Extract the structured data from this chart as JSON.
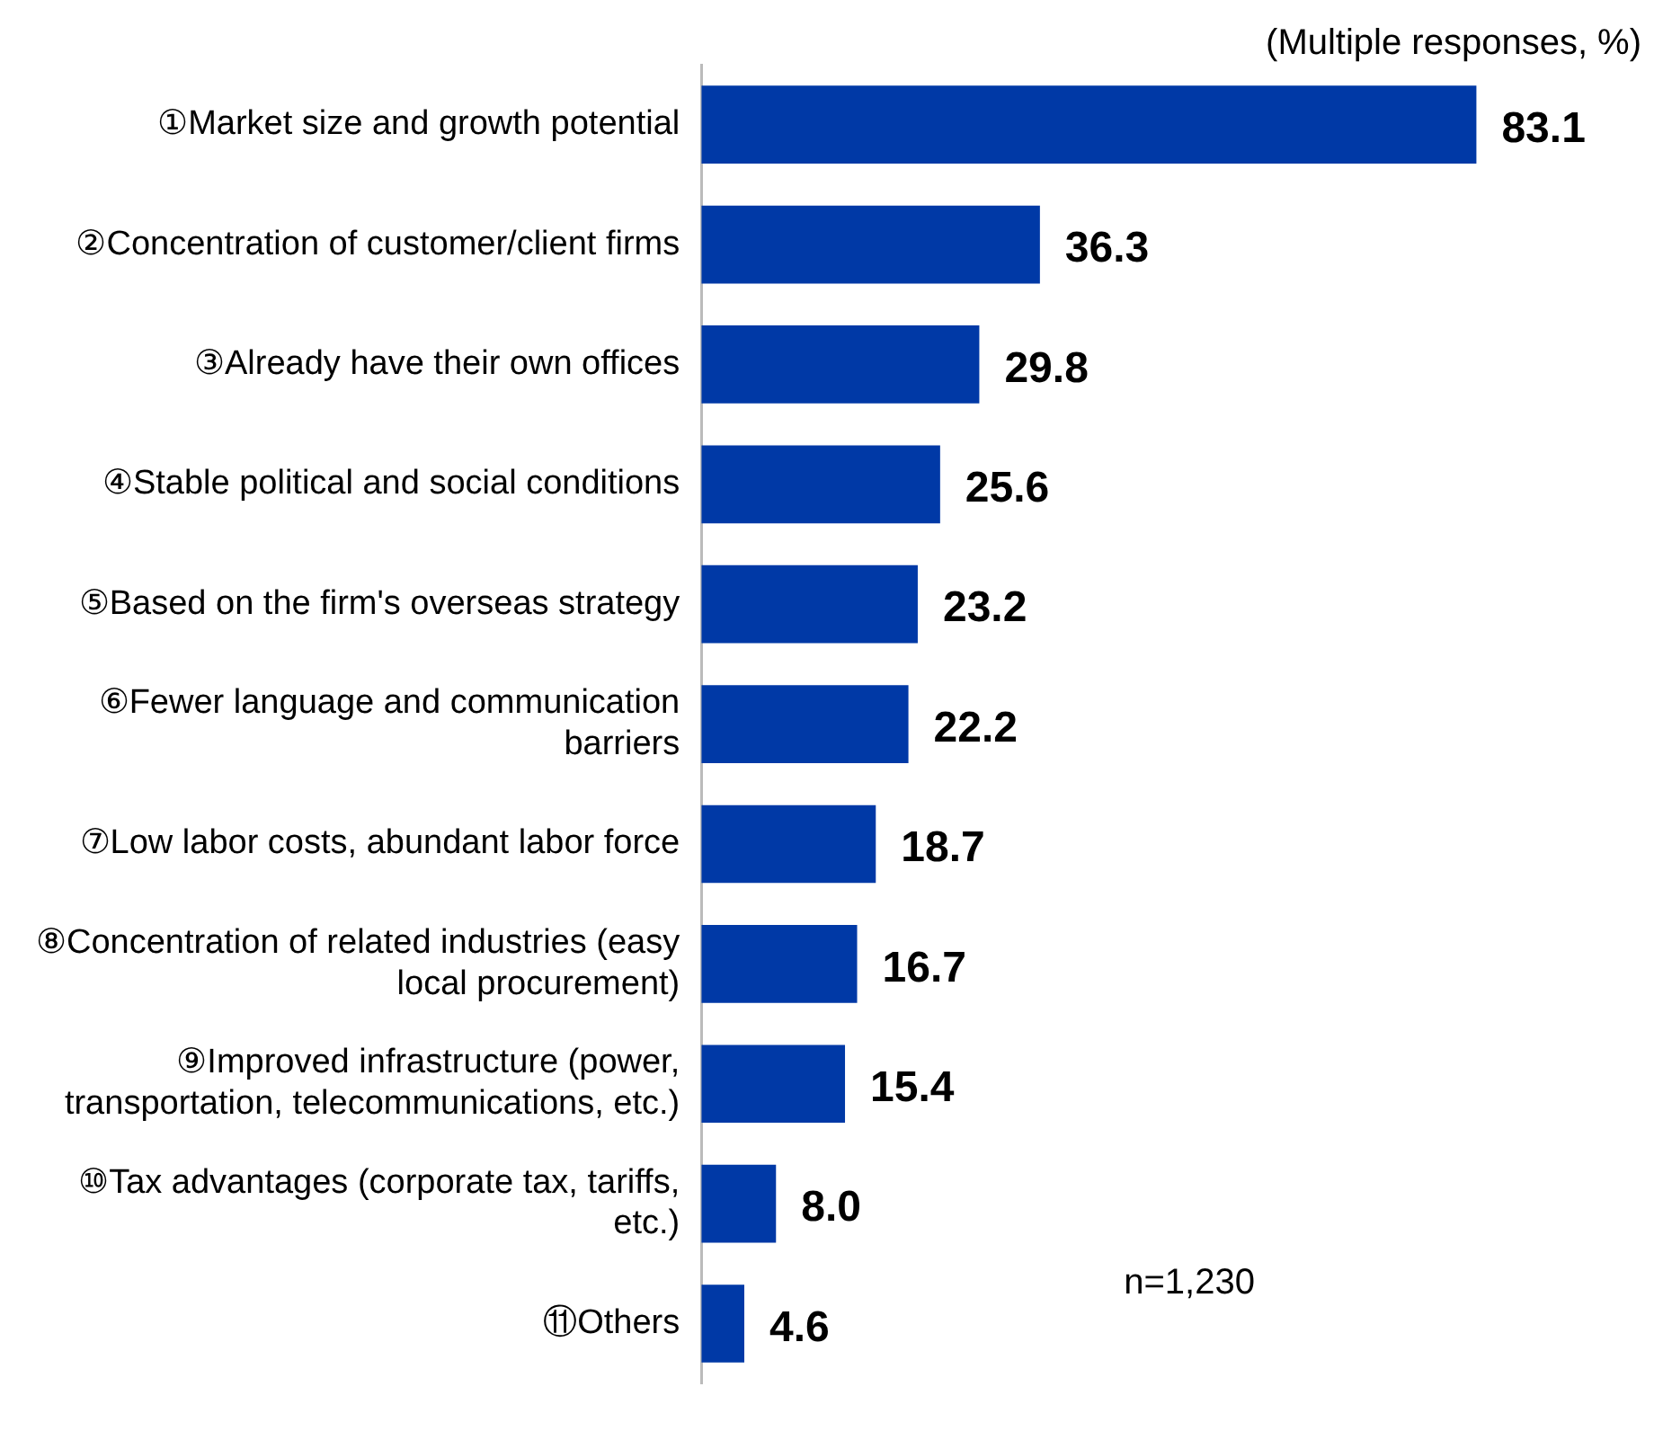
{
  "chart_data": {
    "type": "bar",
    "orientation": "horizontal",
    "categories": [
      "①Market size and growth potential",
      "②Concentration of customer/client firms",
      "③Already have their own offices",
      "④Stable political and social conditions",
      "⑤Based on the firm's overseas strategy",
      "⑥Fewer language and communication barriers",
      "⑦Low labor costs, abundant labor force",
      "⑧Concentration of related industries (easy local procurement)",
      "⑨Improved infrastructure (power, transportation, telecommunications, etc.)",
      "⑩Tax advantages (corporate tax, tariffs, etc.)",
      "⑪Others"
    ],
    "values": [
      83.1,
      36.3,
      29.8,
      25.6,
      23.2,
      22.2,
      18.7,
      16.7,
      15.4,
      8.0,
      4.6
    ],
    "color": "#0039a6",
    "value_labels": [
      "83.1",
      "36.3",
      "29.8",
      "25.6",
      "23.2",
      "22.2",
      "18.7",
      "16.7",
      "15.4",
      "8.0",
      "4.6"
    ],
    "tick_labels": "y",
    "grid": false,
    "legend": false,
    "annotations": [
      "(Multiple responses, %)",
      "n=1,230"
    ]
  }
}
